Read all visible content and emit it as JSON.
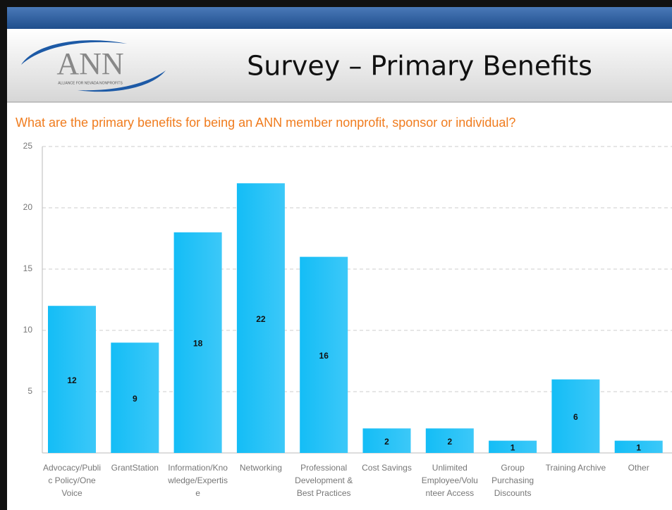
{
  "slide_title": "Survey – Primary Benefits",
  "logo": {
    "name": "ANN",
    "tagline": "ALLIANCE FOR NEVADA NONPROFITS"
  },
  "chart_data": {
    "type": "bar",
    "title": "What are the primary benefits for being an ANN member nonprofit, sponsor or individual?",
    "categories": [
      "Advocacy/Public Policy/One Voice",
      "GrantStation",
      "Information/Knowledge/Expertise",
      "Networking",
      "Professional Development & Best Practices",
      "Cost Savings",
      "Unlimited Employee/Volunteer Access",
      "Group Purchasing Discounts",
      "Training Archive",
      "Other"
    ],
    "values": [
      12,
      9,
      18,
      22,
      16,
      2,
      2,
      1,
      6,
      1
    ],
    "color": "#1ec0f7",
    "ylim": [
      0,
      25
    ],
    "yticks": [
      5,
      10,
      15,
      20,
      25
    ],
    "grid": true
  }
}
